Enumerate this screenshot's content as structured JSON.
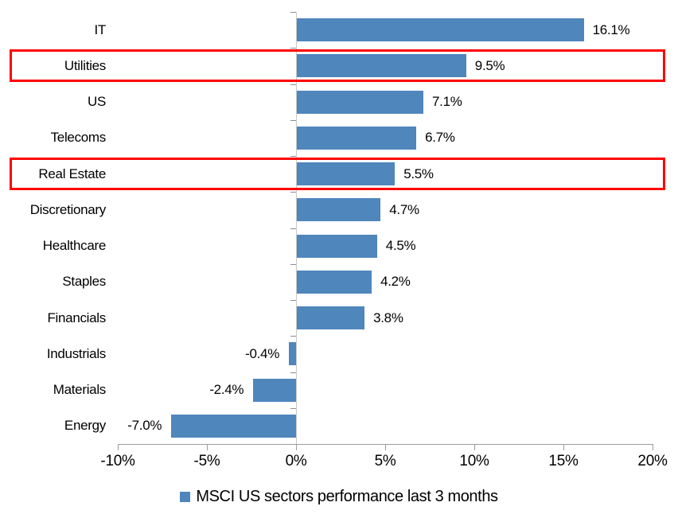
{
  "chart_data": {
    "type": "bar",
    "orientation": "horizontal",
    "title": "",
    "legend": "MSCI US sectors performance last 3 months",
    "legend_position": "bottom-center",
    "categories": [
      "IT",
      "Utilities",
      "US",
      "Telecoms",
      "Real Estate",
      "Discretionary",
      "Healthcare",
      "Staples",
      "Financials",
      "Industrials",
      "Materials",
      "Energy"
    ],
    "values": [
      16.1,
      9.5,
      7.1,
      6.7,
      5.5,
      4.7,
      4.5,
      4.2,
      3.8,
      -0.4,
      -2.4,
      -7.0
    ],
    "value_labels": [
      "16.1%",
      "9.5%",
      "7.1%",
      "6.7%",
      "5.5%",
      "4.7%",
      "4.5%",
      "4.2%",
      "3.8%",
      "-0.4%",
      "-2.4%",
      "-7.0%"
    ],
    "x_ticks": [
      "-10%",
      "-5%",
      "0%",
      "5%",
      "10%",
      "15%",
      "20%"
    ],
    "x_tick_values": [
      -10,
      -5,
      0,
      5,
      10,
      15,
      20
    ],
    "xlim": [
      -10,
      20
    ],
    "grid": false,
    "highlighted_categories": [
      "Utilities",
      "Real Estate"
    ],
    "colors": {
      "bar": "#4f86bc",
      "highlight_border": "#fe0000",
      "value_axis_line": "#c9c9c9",
      "category_axis_line": "#9b9b9b",
      "x_tick": "#9b9b9b",
      "category_tick": "#8f8f8f",
      "text": "#000000"
    }
  }
}
